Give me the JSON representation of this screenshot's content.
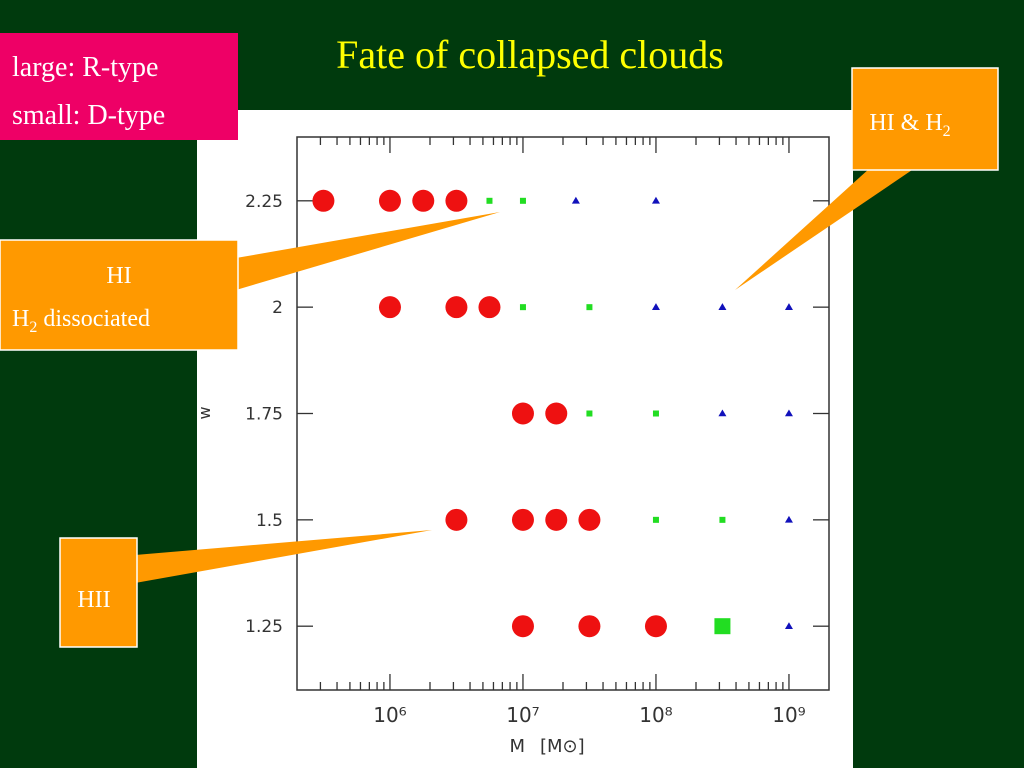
{
  "chart_data": {
    "type": "scatter",
    "title": "Fate of collapsed clouds",
    "xlabel": "M",
    "xlabel_unit": "[M⊙]",
    "ylabel": "w",
    "xscale": "log",
    "xlim": [
      200000,
      2000000000
    ],
    "ylim": [
      1.1,
      2.4
    ],
    "xticks": [
      {
        "value": 1000000,
        "label": "10⁶"
      },
      {
        "value": 10000000,
        "label": "10⁷"
      },
      {
        "value": 100000000,
        "label": "10⁸"
      },
      {
        "value": 1000000000,
        "label": "10⁹"
      }
    ],
    "xminorticks": [
      300000,
      400000,
      500000,
      600000,
      700000,
      800000,
      900000,
      2000000,
      3000000,
      4000000,
      5000000,
      6000000,
      7000000,
      8000000,
      9000000,
      20000000,
      30000000,
      40000000,
      50000000,
      60000000,
      70000000,
      80000000,
      90000000,
      200000000,
      300000000,
      400000000,
      500000000,
      600000000,
      700000000,
      800000000,
      900000000
    ],
    "yticks": [
      1.25,
      1.5,
      1.75,
      2,
      2.25
    ],
    "series": [
      {
        "marker": "circle",
        "size": "large",
        "color": "#ee1111",
        "x": [
          316000,
          1000000,
          1780000,
          3160000,
          1000000,
          3160000,
          5600000,
          10000000,
          17800000,
          3160000,
          10000000,
          17800000,
          31600000,
          10000000,
          31600000,
          100000000
        ],
        "values": [
          2.25,
          2.25,
          2.25,
          2.25,
          2,
          2,
          2,
          1.75,
          1.75,
          1.5,
          1.5,
          1.5,
          1.5,
          1.25,
          1.25,
          1.25
        ]
      },
      {
        "marker": "square",
        "size": "small",
        "color": "#22dd22",
        "x": [
          5600000,
          10000000,
          10000000,
          31600000,
          31600000,
          100000000,
          100000000,
          316000000
        ],
        "values": [
          2.25,
          2.25,
          2,
          2,
          1.75,
          1.75,
          1.5,
          1.5
        ]
      },
      {
        "marker": "square",
        "size": "large",
        "color": "#22dd22",
        "x": [
          316000000
        ],
        "values": [
          1.25
        ]
      },
      {
        "marker": "triangle",
        "size": "small",
        "color": "#1111bb",
        "x": [
          25000000,
          100000000,
          100000000,
          316000000,
          1000000000,
          316000000,
          1000000000,
          1000000000,
          1000000000
        ],
        "values": [
          2.25,
          2.25,
          2,
          2,
          2,
          1.75,
          1.75,
          1.5,
          1.25
        ]
      }
    ]
  },
  "legend_box": {
    "line1": "large: R-type",
    "line2": "small: D-type"
  },
  "callouts": {
    "hi_h2": {
      "text": "HI & H",
      "sub": "2"
    },
    "hi": {
      "line1": "HI",
      "line2": "H",
      "line2_sub": "2",
      "line2_rest": " dissociated"
    },
    "hii": {
      "text": "HII"
    }
  }
}
